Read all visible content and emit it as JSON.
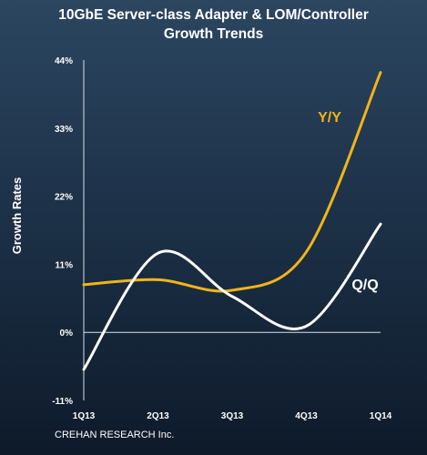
{
  "chart_data": {
    "type": "line",
    "title_lines": [
      "10GbE Server-class Adapter & LOM/Controller",
      "Growth Trends"
    ],
    "xlabel": "",
    "ylabel": "Growth Rates",
    "categories": [
      "1Q13",
      "2Q13",
      "3Q13",
      "4Q13",
      "1Q14"
    ],
    "y_ticks": [
      "-11%",
      "0%",
      "11%",
      "22%",
      "33%",
      "44%"
    ],
    "ylim": [
      -11,
      44
    ],
    "grid": false,
    "series": [
      {
        "name": "Y/Y",
        "color": "#f2b418",
        "values": [
          7.7,
          8.5,
          6.8,
          13.0,
          42.0
        ],
        "smooth": true
      },
      {
        "name": "Q/Q",
        "color": "#ffffff",
        "values": [
          -6.0,
          12.8,
          5.8,
          1.0,
          17.5
        ],
        "smooth": true
      }
    ],
    "source": "CREHAN RESEARCH Inc."
  }
}
